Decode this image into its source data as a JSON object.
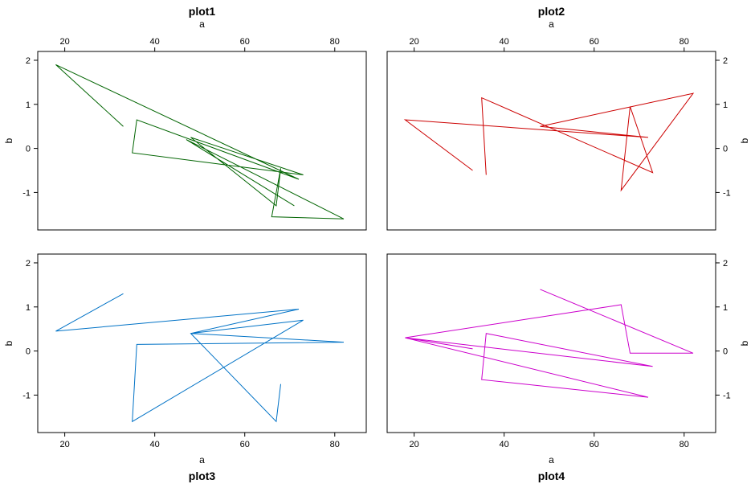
{
  "chart_data": [
    {
      "type": "line",
      "title": "plot1",
      "xlabel": "a",
      "ylabel": "b",
      "color": "#006400",
      "x": [
        33,
        18,
        72,
        36,
        35,
        73,
        48,
        67,
        68,
        66,
        82,
        47,
        71
      ],
      "y": [
        0.5,
        1.9,
        -0.7,
        0.65,
        -0.1,
        -0.6,
        0.25,
        -1.3,
        -0.45,
        -1.55,
        -1.6,
        0.2,
        -1.3
      ]
    },
    {
      "type": "line",
      "title": "plot2",
      "xlabel": "a",
      "ylabel": "b",
      "color": "#cc0000",
      "x": [
        33,
        18,
        72,
        48,
        82,
        66,
        68,
        73,
        35,
        36
      ],
      "y": [
        -0.5,
        0.65,
        0.25,
        0.5,
        1.25,
        -0.95,
        0.95,
        -0.55,
        1.15,
        -0.6
      ]
    },
    {
      "type": "line",
      "title": "plot3",
      "xlabel": "a",
      "ylabel": "b",
      "color": "#0072c6",
      "x": [
        33,
        18,
        72,
        48,
        82,
        36,
        35,
        73,
        48,
        67,
        68
      ],
      "y": [
        1.3,
        0.45,
        0.95,
        0.4,
        0.2,
        0.15,
        -1.6,
        0.7,
        0.4,
        -1.6,
        -0.75
      ]
    },
    {
      "type": "line",
      "title": "plot4",
      "xlabel": "a",
      "ylabel": "b",
      "color": "#cc00cc",
      "x": [
        33,
        18,
        73,
        36,
        35,
        72,
        18,
        66,
        68,
        82,
        48
      ],
      "y": [
        0.05,
        0.3,
        -0.35,
        0.4,
        -0.65,
        -1.05,
        0.3,
        1.05,
        -0.05,
        -0.05,
        1.4
      ]
    }
  ],
  "axes": {
    "xlim": [
      14,
      87
    ],
    "ylim": [
      -1.85,
      2.2
    ],
    "xticks": [
      "20",
      "40",
      "60",
      "80"
    ],
    "yticks": [
      "-1",
      "0",
      "1",
      "2"
    ]
  }
}
